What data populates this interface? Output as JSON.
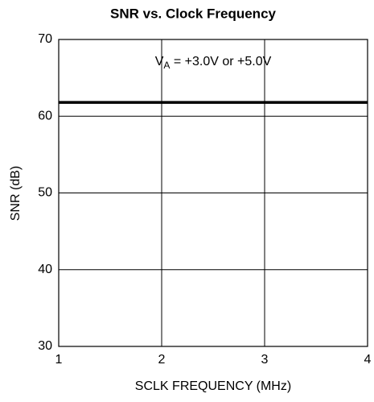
{
  "chart_data": {
    "type": "line",
    "title": "SNR vs. Clock Frequency",
    "x_label": "SCLK FREQUENCY (MHz)",
    "y_label": "SNR (dB)",
    "annotation": {
      "main": "V",
      "sub": "A",
      "rest": " = +3.0V or +5.0V"
    },
    "x": [
      1,
      4
    ],
    "series": [
      {
        "color": "#000000",
        "values": [
          61.8,
          61.8
        ]
      }
    ],
    "xlim": [
      1,
      4
    ],
    "xticks": [
      1,
      2,
      3,
      4
    ],
    "ylim": [
      30,
      70
    ],
    "yticks": [
      30,
      40,
      50,
      60,
      70
    ],
    "grid": true
  }
}
